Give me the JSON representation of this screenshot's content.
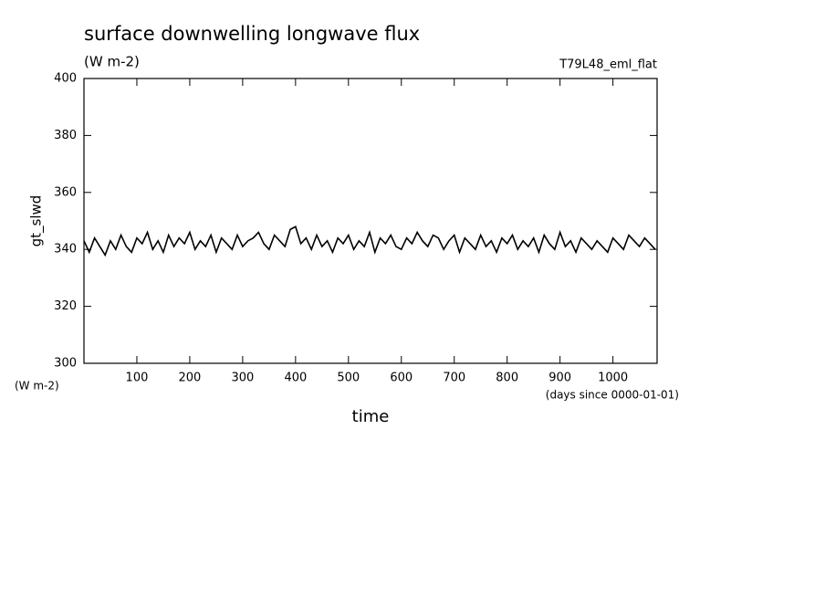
{
  "chart_data": {
    "type": "line",
    "title": "surface downwelling longwave flux",
    "subtitle": "(W m-2)",
    "run_label": "T79L48_eml_flat",
    "ylabel": "gt_slwd",
    "y_unit": "(W m-2)",
    "xlabel": "time",
    "x_unit": "(days since 0000-01-01)",
    "x": [
      0,
      10,
      20,
      30,
      40,
      50,
      60,
      70,
      80,
      90,
      100,
      110,
      120,
      130,
      140,
      150,
      160,
      170,
      180,
      190,
      200,
      210,
      220,
      230,
      240,
      250,
      260,
      270,
      280,
      290,
      300,
      310,
      320,
      330,
      340,
      350,
      360,
      370,
      380,
      390,
      400,
      410,
      420,
      430,
      440,
      450,
      460,
      470,
      480,
      490,
      500,
      510,
      520,
      530,
      540,
      550,
      560,
      570,
      580,
      590,
      600,
      610,
      620,
      630,
      640,
      650,
      660,
      670,
      680,
      690,
      700,
      710,
      720,
      730,
      740,
      750,
      760,
      770,
      780,
      790,
      800,
      810,
      820,
      830,
      840,
      850,
      860,
      870,
      880,
      890,
      900,
      910,
      920,
      930,
      940,
      950,
      960,
      970,
      980,
      990,
      1000,
      1010,
      1020,
      1030,
      1040,
      1050,
      1060,
      1070,
      1080
    ],
    "series": [
      {
        "name": "gt_slwd",
        "color": "#000000",
        "values": [
          343,
          339,
          344,
          341,
          338,
          343,
          340,
          345,
          341,
          339,
          344,
          342,
          346,
          340,
          343,
          339,
          345,
          341,
          344,
          342,
          346,
          340,
          343,
          341,
          345,
          339,
          344,
          342,
          340,
          345,
          341,
          343,
          344,
          346,
          342,
          340,
          345,
          343,
          341,
          347,
          348,
          342,
          344,
          340,
          345,
          341,
          343,
          339,
          344,
          342,
          345,
          340,
          343,
          341,
          346,
          339,
          344,
          342,
          345,
          341,
          340,
          344,
          342,
          346,
          343,
          341,
          345,
          344,
          340,
          343,
          345,
          339,
          344,
          342,
          340,
          345,
          341,
          343,
          339,
          344,
          342,
          345,
          340,
          343,
          341,
          344,
          339,
          345,
          342,
          340,
          346,
          341,
          343,
          339,
          344,
          342,
          340,
          343,
          341,
          339,
          344,
          342,
          340,
          345,
          343,
          341,
          344,
          342,
          340
        ]
      }
    ],
    "xlim": [
      0,
      1080
    ],
    "xticks": [
      100,
      200,
      300,
      400,
      500,
      600,
      700,
      800,
      900,
      1000
    ],
    "ylim": [
      300,
      400
    ],
    "yticks": [
      300,
      320,
      340,
      360,
      380,
      400
    ]
  }
}
